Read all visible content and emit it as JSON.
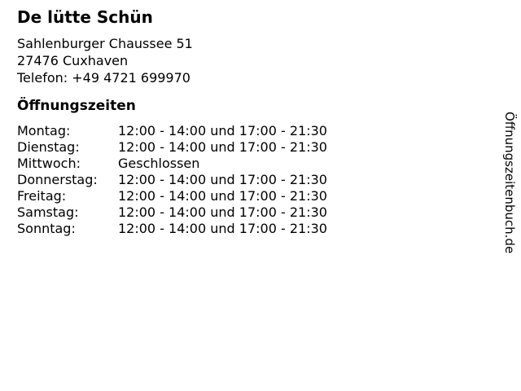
{
  "business": {
    "name": "De lütte Schün",
    "address_line1": "Sahlenburger Chaussee 51",
    "address_line2": "27476 Cuxhaven",
    "phone": "Telefon: +49 4721 699970"
  },
  "hours": {
    "heading": "Öffnungszeiten",
    "rows": [
      {
        "day": "Montag:",
        "time": "12:00 - 14:00 und 17:00 - 21:30"
      },
      {
        "day": "Dienstag:",
        "time": "12:00 - 14:00 und 17:00 - 21:30"
      },
      {
        "day": "Mittwoch:",
        "time": "Geschlossen"
      },
      {
        "day": "Donnerstag:",
        "time": "12:00 - 14:00 und 17:00 - 21:30"
      },
      {
        "day": "Freitag:",
        "time": "12:00 - 14:00 und 17:00 - 21:30"
      },
      {
        "day": "Samstag:",
        "time": "12:00 - 14:00 und 17:00 - 21:30"
      },
      {
        "day": "Sonntag:",
        "time": "12:00 - 14:00 und 17:00 - 21:30"
      }
    ]
  },
  "watermark": "Öffnungszeitenbuch.de",
  "colors": {
    "text": "#000000",
    "background": "#ffffff"
  }
}
